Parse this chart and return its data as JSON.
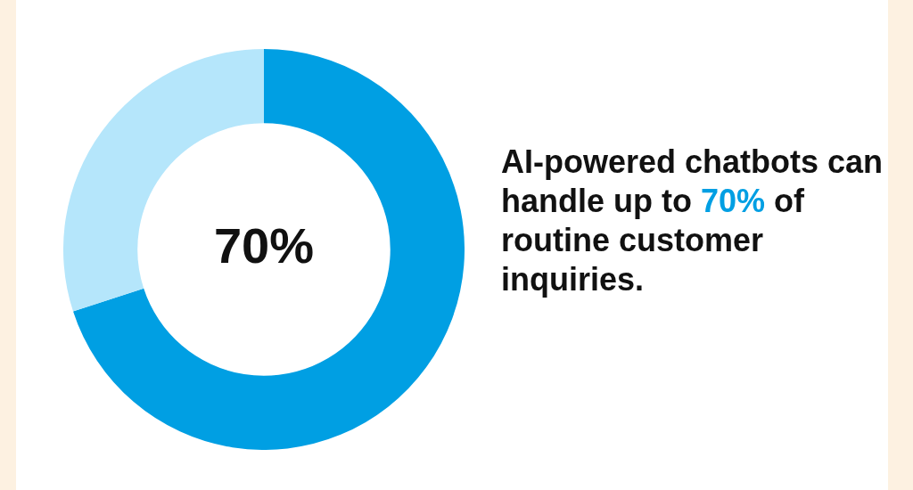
{
  "chart_data": {
    "type": "donut",
    "title": "AI-powered chatbots can handle up to 70% of routine customer inquiries.",
    "categories": [
      null,
      null
    ],
    "values": [
      70,
      30
    ],
    "colors": [
      "#009fe3",
      "#b5e6fb"
    ],
    "annotations": [
      "70%"
    ],
    "legend": false
  }
}
